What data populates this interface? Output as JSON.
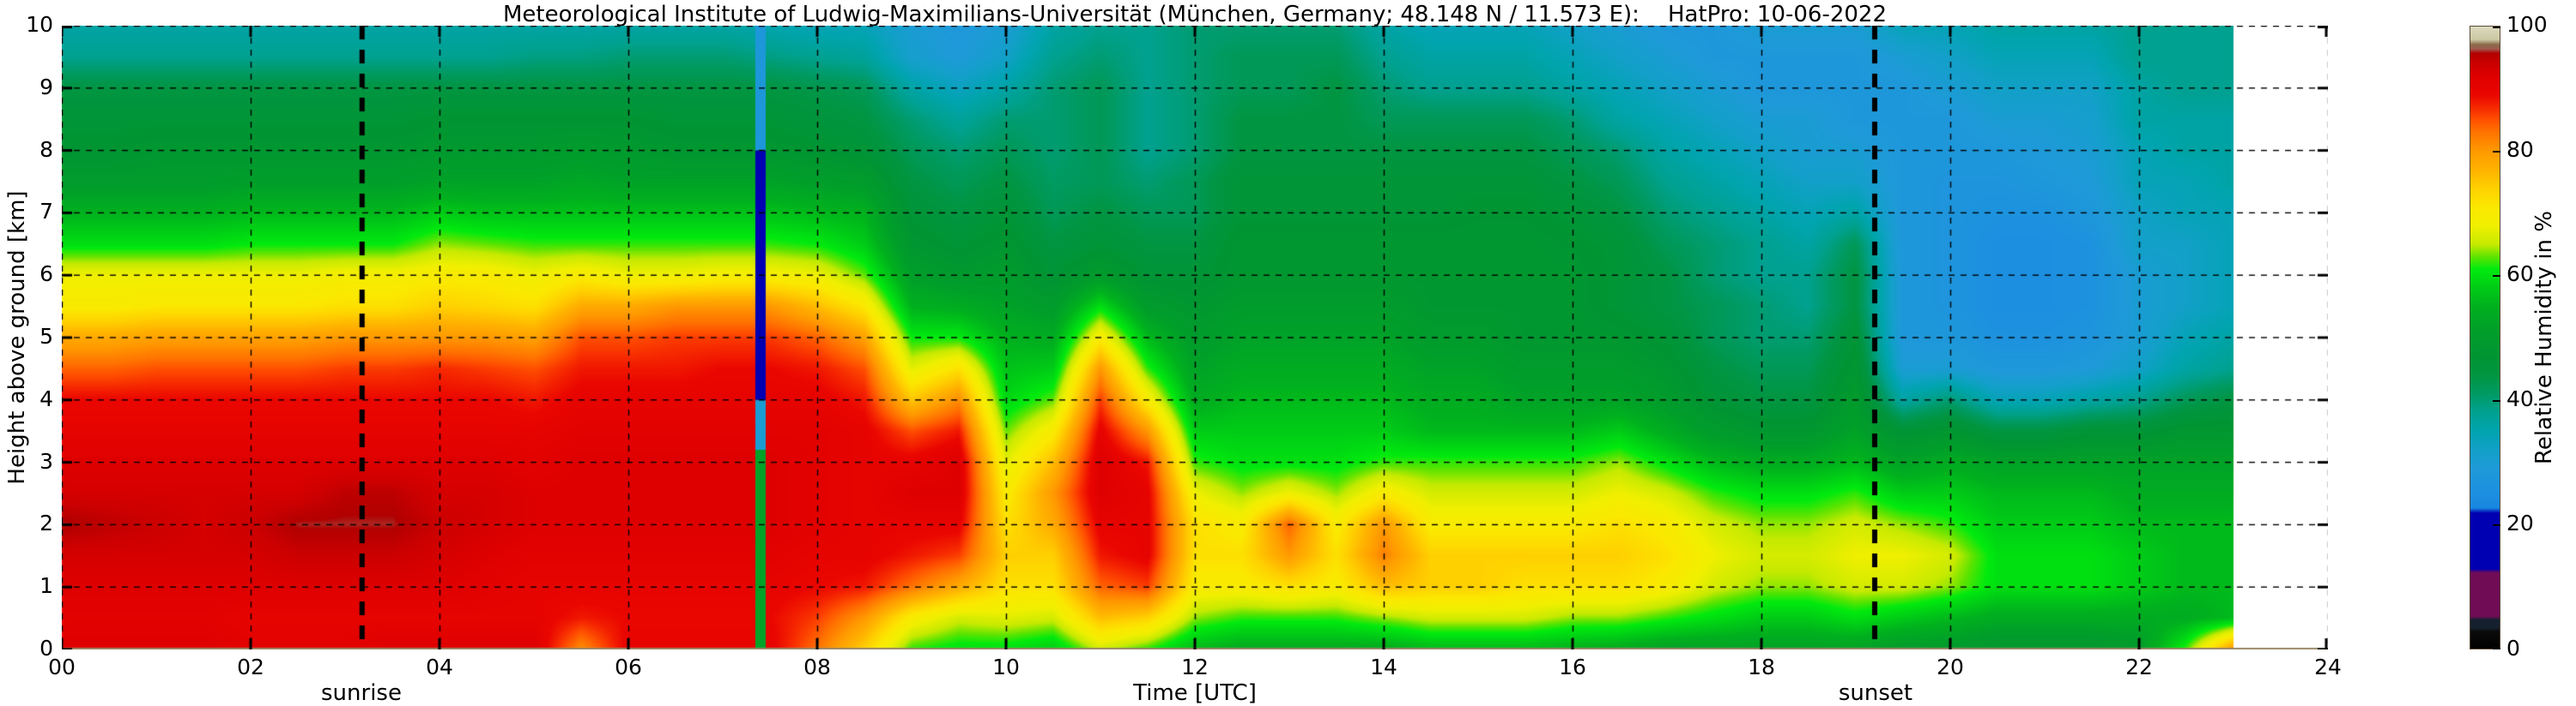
{
  "title": "Meteorological Institute of Ludwig-Maximilians-Universität (München, Germany; 48.148 N / 11.573 E):    HatPro: 10-06-2022",
  "axes": {
    "x_label": "Time [UTC]",
    "y_label": "Height above ground [km]",
    "colorbar_label": "Relative Humidity in %",
    "x_tick_labels": [
      "00",
      "02",
      "04",
      "06",
      "08",
      "10",
      "12",
      "14",
      "16",
      "18",
      "20",
      "22",
      "24"
    ],
    "y_tick_labels": [
      "10",
      "9",
      "8",
      "7",
      "6",
      "5",
      "4",
      "3",
      "2",
      "1",
      "0"
    ],
    "colorbar_tick_labels": [
      "100",
      "80",
      "60",
      "40",
      "20",
      "0"
    ]
  },
  "markers": {
    "sunrise": {
      "label": "sunrise",
      "hour": 3.18
    },
    "sunset": {
      "label": "sunset",
      "hour": 19.2
    }
  },
  "chart_data": {
    "type": "heatmap",
    "title": "HatPro microwave radiometer relative humidity time-height section, 10-06-2022",
    "x_unit": "hours UTC",
    "x_range": [
      0,
      24
    ],
    "data_end_hour": 23,
    "y_unit": "km above ground",
    "y_range": [
      0,
      10
    ],
    "value_unit": "Relative Humidity %",
    "value_range": [
      0,
      100
    ],
    "grid": "dashed black, 2 h / 1 km",
    "legend_position": "colorbar right",
    "times": [
      0,
      0.5,
      1,
      1.5,
      2,
      2.5,
      3,
      3.5,
      4,
      4.5,
      5,
      5.5,
      6,
      6.5,
      7,
      7.5,
      8,
      8.5,
      9,
      9.5,
      10,
      10.5,
      11,
      11.5,
      12,
      12.5,
      13,
      13.5,
      14,
      14.5,
      15,
      15.5,
      16,
      16.5,
      17,
      17.5,
      18,
      18.5,
      19,
      19.5,
      20,
      20.5,
      21,
      21.5,
      22,
      22.5,
      23
    ],
    "heights_top_to_bottom": [
      10,
      9.5,
      9,
      8.5,
      8,
      7.5,
      7,
      6.5,
      6,
      5.5,
      5,
      4.5,
      4,
      3.5,
      3,
      2.5,
      2,
      1.5,
      1,
      0.5,
      0
    ],
    "columns_rh_top_to_bottom": [
      [
        36,
        38,
        44,
        46,
        47,
        50,
        55,
        60,
        68,
        70,
        78,
        84,
        89,
        90,
        92,
        93,
        96,
        93,
        92,
        91,
        92
      ],
      [
        36,
        38,
        44,
        46,
        47,
        50,
        55,
        60,
        68,
        70,
        78,
        84,
        89,
        90,
        92,
        93,
        95,
        93,
        92,
        91,
        92
      ],
      [
        36,
        38,
        44,
        46,
        48,
        50,
        55,
        60,
        68,
        71,
        79,
        85,
        89,
        90,
        92,
        93,
        94,
        93,
        92,
        91,
        92
      ],
      [
        36,
        38,
        44,
        46,
        48,
        50,
        55,
        60,
        68,
        71,
        79,
        85,
        89,
        90,
        92,
        93,
        93,
        93,
        92,
        91,
        92
      ],
      [
        36,
        38,
        44,
        46,
        48,
        51,
        56,
        61,
        68,
        71,
        79,
        85,
        89,
        90,
        92,
        93,
        94,
        93,
        92,
        90,
        91
      ],
      [
        36,
        38,
        44,
        46,
        48,
        51,
        56,
        61,
        68,
        71,
        79,
        85,
        89,
        90,
        92,
        93,
        96,
        94,
        92,
        90,
        91
      ],
      [
        36,
        38,
        44,
        46,
        48,
        51,
        56,
        61,
        69,
        72,
        80,
        86,
        89,
        90,
        92,
        95,
        96,
        94,
        92,
        90,
        91
      ],
      [
        36,
        38,
        44,
        46,
        48,
        51,
        56,
        61,
        69,
        72,
        80,
        86,
        89,
        90,
        92,
        95,
        96,
        94,
        92,
        90,
        92
      ],
      [
        36,
        38,
        44,
        47,
        49,
        52,
        58,
        64,
        70,
        74,
        80,
        87,
        89,
        90,
        92,
        93,
        94,
        93,
        92,
        90,
        92
      ],
      [
        36,
        38,
        44,
        47,
        49,
        52,
        57,
        63,
        70,
        73,
        80,
        86,
        89,
        90,
        92,
        93,
        93,
        92,
        91,
        90,
        92
      ],
      [
        36,
        39,
        44,
        47,
        49,
        52,
        57,
        62,
        68,
        72,
        79,
        85,
        88,
        90,
        91,
        92,
        92,
        91,
        90,
        90,
        92
      ],
      [
        36,
        39,
        44,
        47,
        50,
        53,
        57,
        62,
        70,
        78,
        85,
        88,
        90,
        91,
        92,
        92,
        92,
        91,
        90,
        88,
        81
      ],
      [
        36,
        40,
        44,
        47,
        49,
        52,
        57,
        62,
        68,
        78,
        85,
        88,
        90,
        91,
        92,
        92,
        92,
        91,
        90,
        89,
        90
      ],
      [
        36,
        40,
        44,
        46,
        48,
        52,
        57,
        62,
        68,
        80,
        86,
        88,
        90,
        91,
        92,
        92,
        92,
        91,
        90,
        89,
        90
      ],
      [
        36,
        40,
        44,
        46,
        48,
        52,
        57,
        62,
        69,
        80,
        86,
        89,
        90,
        91,
        92,
        92,
        92,
        91,
        90,
        89,
        90
      ],
      [
        35,
        39,
        44,
        46,
        48,
        52,
        57,
        62,
        69,
        80,
        86,
        89,
        90,
        91,
        92,
        92,
        92,
        91,
        90,
        89,
        90
      ],
      [
        34,
        38,
        43,
        45,
        47,
        51,
        56,
        61,
        68,
        76,
        84,
        88,
        90,
        91,
        91,
        91,
        91,
        90,
        89,
        86,
        83
      ],
      [
        34,
        37,
        42,
        44,
        46,
        50,
        55,
        58,
        63,
        71,
        79,
        85,
        88,
        90,
        90,
        90,
        90,
        90,
        88,
        80,
        74
      ],
      [
        30,
        31,
        36,
        40,
        42,
        44,
        46,
        48,
        51,
        55,
        61,
        67,
        75,
        85,
        90,
        92,
        90,
        88,
        83,
        70,
        62
      ],
      [
        28,
        29,
        33,
        37,
        40,
        42,
        44,
        46,
        49,
        54,
        61,
        72,
        81,
        88,
        92,
        92,
        90,
        86,
        78,
        66,
        60
      ],
      [
        30,
        32,
        36,
        40,
        42,
        44,
        46,
        48,
        50,
        52,
        55,
        57,
        59,
        63,
        67,
        70,
        72,
        74,
        72,
        67,
        60
      ],
      [
        36,
        38,
        40,
        40,
        40,
        41,
        42,
        44,
        46,
        50,
        54,
        58,
        63,
        70,
        76,
        80,
        78,
        74,
        72,
        66,
        58
      ],
      [
        38,
        40,
        42,
        42,
        42,
        42,
        44,
        46,
        50,
        60,
        70,
        80,
        86,
        90,
        92,
        92,
        90,
        88,
        84,
        76,
        66
      ],
      [
        38,
        38,
        38,
        38,
        38,
        40,
        42,
        44,
        46,
        50,
        56,
        62,
        70,
        80,
        88,
        90,
        90,
        90,
        86,
        74,
        62
      ],
      [
        40,
        40,
        40,
        40,
        40,
        42,
        42,
        44,
        46,
        48,
        50,
        52,
        54,
        58,
        62,
        68,
        72,
        72,
        70,
        64,
        56
      ],
      [
        40,
        42,
        42,
        44,
        44,
        46,
        46,
        48,
        48,
        50,
        52,
        54,
        56,
        58,
        60,
        64,
        70,
        72,
        70,
        62,
        54
      ],
      [
        40,
        42,
        42,
        44,
        44,
        46,
        46,
        48,
        48,
        50,
        52,
        54,
        56,
        58,
        60,
        68,
        84,
        80,
        72,
        62,
        54
      ],
      [
        40,
        42,
        44,
        44,
        44,
        46,
        46,
        48,
        48,
        50,
        52,
        54,
        56,
        58,
        60,
        64,
        70,
        72,
        70,
        62,
        54
      ],
      [
        36,
        38,
        40,
        42,
        44,
        46,
        46,
        48,
        48,
        50,
        52,
        54,
        56,
        58,
        62,
        70,
        80,
        82,
        76,
        64,
        54
      ],
      [
        34,
        36,
        38,
        42,
        44,
        46,
        46,
        48,
        48,
        48,
        50,
        52,
        54,
        56,
        62,
        66,
        70,
        74,
        74,
        66,
        56
      ],
      [
        34,
        36,
        38,
        42,
        44,
        46,
        47,
        48,
        48,
        48,
        50,
        52,
        54,
        56,
        62,
        66,
        70,
        74,
        74,
        66,
        56
      ],
      [
        34,
        36,
        38,
        42,
        44,
        46,
        47,
        48,
        48,
        48,
        48,
        50,
        52,
        56,
        62,
        66,
        70,
        74,
        72,
        66,
        56
      ],
      [
        32,
        34,
        36,
        40,
        42,
        44,
        46,
        47,
        48,
        48,
        48,
        50,
        52,
        56,
        62,
        66,
        70,
        74,
        72,
        64,
        55
      ],
      [
        30,
        32,
        34,
        36,
        40,
        42,
        44,
        46,
        46,
        46,
        48,
        50,
        52,
        58,
        64,
        68,
        72,
        74,
        72,
        64,
        54
      ],
      [
        28,
        30,
        32,
        34,
        36,
        38,
        40,
        42,
        44,
        44,
        46,
        48,
        50,
        54,
        60,
        66,
        70,
        72,
        70,
        62,
        52
      ],
      [
        28,
        28,
        30,
        32,
        34,
        36,
        38,
        40,
        40,
        42,
        42,
        44,
        46,
        50,
        56,
        62,
        66,
        68,
        66,
        60,
        52
      ],
      [
        30,
        28,
        28,
        30,
        32,
        34,
        36,
        38,
        38,
        40,
        40,
        42,
        44,
        48,
        54,
        60,
        64,
        66,
        64,
        58,
        52
      ],
      [
        30,
        28,
        28,
        30,
        30,
        32,
        34,
        36,
        38,
        38,
        40,
        42,
        44,
        48,
        54,
        60,
        64,
        66,
        64,
        58,
        52
      ],
      [
        30,
        28,
        28,
        28,
        30,
        32,
        36,
        42,
        44,
        44,
        46,
        48,
        50,
        52,
        56,
        62,
        66,
        68,
        66,
        60,
        52
      ],
      [
        34,
        30,
        28,
        28,
        28,
        28,
        28,
        28,
        28,
        28,
        28,
        30,
        36,
        46,
        52,
        58,
        64,
        68,
        66,
        58,
        50
      ],
      [
        34,
        32,
        30,
        28,
        28,
        27,
        27,
        27,
        27,
        27,
        28,
        30,
        40,
        48,
        54,
        58,
        62,
        66,
        64,
        56,
        50
      ],
      [
        36,
        34,
        32,
        30,
        28,
        27,
        26,
        25,
        25,
        25,
        26,
        28,
        34,
        44,
        52,
        56,
        58,
        60,
        60,
        54,
        48
      ],
      [
        36,
        34,
        32,
        30,
        29,
        28,
        26,
        25,
        25,
        25,
        26,
        28,
        34,
        44,
        52,
        56,
        58,
        60,
        60,
        54,
        48
      ],
      [
        36,
        34,
        32,
        31,
        30,
        29,
        28,
        26,
        26,
        26,
        27,
        29,
        36,
        46,
        52,
        56,
        58,
        60,
        60,
        54,
        48
      ],
      [
        38,
        38,
        36,
        36,
        34,
        34,
        32,
        32,
        30,
        30,
        30,
        32,
        38,
        46,
        52,
        54,
        56,
        58,
        58,
        54,
        50
      ],
      [
        38,
        38,
        38,
        36,
        36,
        34,
        34,
        32,
        32,
        32,
        34,
        36,
        42,
        48,
        52,
        54,
        56,
        56,
        56,
        54,
        62
      ],
      [
        38,
        38,
        38,
        36,
        36,
        36,
        34,
        34,
        34,
        34,
        36,
        38,
        44,
        48,
        52,
        54,
        56,
        56,
        56,
        56,
        80
      ]
    ],
    "gap_stripe": {
      "hour": 7.4,
      "width_hours": 0.11,
      "segments": [
        {
          "from_km": 8.0,
          "to_km": 10.0,
          "rh": 28
        },
        {
          "from_km": 4.0,
          "to_km": 8.0,
          "rh": 17
        },
        {
          "from_km": 3.2,
          "to_km": 4.0,
          "rh": 30
        },
        {
          "from_km": 0.0,
          "to_km": 3.2,
          "rh": 52
        }
      ]
    },
    "colormap_stops": [
      [
        0,
        "#000000"
      ],
      [
        2.8,
        "#0b0b0b"
      ],
      [
        3.3,
        "#14202e"
      ],
      [
        4.6,
        "#14202e"
      ],
      [
        5.2,
        "#6f0c55"
      ],
      [
        12.2,
        "#6f0c55"
      ],
      [
        12.8,
        "#0000b2"
      ],
      [
        21.8,
        "#0000b2"
      ],
      [
        22.6,
        "#1787e0"
      ],
      [
        25,
        "#1d8fe0"
      ],
      [
        29,
        "#1e9ad8"
      ],
      [
        32,
        "#12a0c8"
      ],
      [
        35,
        "#00a4ae"
      ],
      [
        38,
        "#00a190"
      ],
      [
        41,
        "#009a62"
      ],
      [
        44,
        "#009540"
      ],
      [
        47,
        "#009532"
      ],
      [
        51,
        "#009e2a"
      ],
      [
        55,
        "#00b01e"
      ],
      [
        58,
        "#00cc16"
      ],
      [
        61,
        "#00ea0e"
      ],
      [
        63,
        "#5fe400"
      ],
      [
        65,
        "#c6ea00"
      ],
      [
        68,
        "#f1ef00"
      ],
      [
        71,
        "#fbe800"
      ],
      [
        74,
        "#ffd000"
      ],
      [
        77,
        "#ffb200"
      ],
      [
        80,
        "#ff9900"
      ],
      [
        83,
        "#ff7300"
      ],
      [
        85,
        "#ff5000"
      ],
      [
        87,
        "#f62800"
      ],
      [
        89,
        "#ea0600"
      ],
      [
        92,
        "#de0000"
      ],
      [
        94,
        "#cc0000"
      ],
      [
        95.7,
        "#b20000"
      ],
      [
        96.4,
        "#a05a50"
      ],
      [
        97.1,
        "#8a6a4a"
      ],
      [
        97.9,
        "#ccc8a4"
      ],
      [
        100,
        "#dcdabe"
      ]
    ]
  },
  "style_colors": {
    "gridline": "#000000",
    "bottom_spine": "#9b8a6b",
    "sun_marker_line": "#000000",
    "background": "#ffffff"
  }
}
